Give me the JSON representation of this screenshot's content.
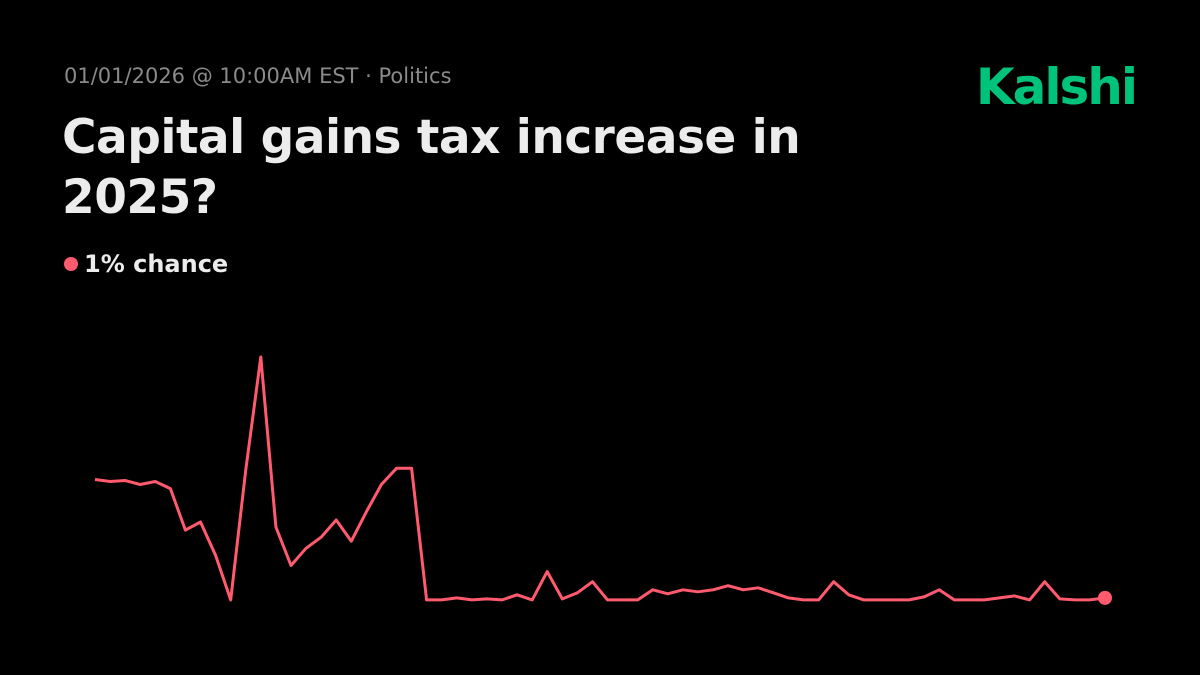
{
  "brand": "Kalshi",
  "subtitle": "01/01/2026 @ 10:00AM EST · Politics",
  "chart_data": {
    "type": "line",
    "title": "Capital gains tax increase in 2025?",
    "headline": "1% chance",
    "color": "#ff5a6e",
    "ylim": [
      0,
      25
    ],
    "values": [
      12.7,
      12.5,
      12.6,
      12.2,
      12.5,
      11.8,
      7.7,
      8.5,
      5.2,
      0.8,
      13.6,
      24.8,
      8.0,
      4.2,
      5.9,
      7.0,
      8.7,
      6.6,
      9.5,
      12.2,
      13.8,
      13.8,
      0.8,
      0.8,
      1.0,
      0.8,
      0.9,
      0.8,
      1.3,
      0.8,
      3.6,
      0.9,
      1.5,
      2.6,
      0.8,
      0.8,
      0.8,
      1.8,
      1.4,
      1.8,
      1.6,
      1.8,
      2.2,
      1.8,
      2.0,
      1.5,
      1.0,
      0.8,
      0.8,
      2.6,
      1.3,
      0.8,
      0.8,
      0.8,
      0.8,
      1.1,
      1.8,
      0.8,
      0.8,
      0.8,
      1.0,
      1.2,
      0.8,
      2.6,
      0.9,
      0.8,
      0.8,
      1.0
    ]
  }
}
